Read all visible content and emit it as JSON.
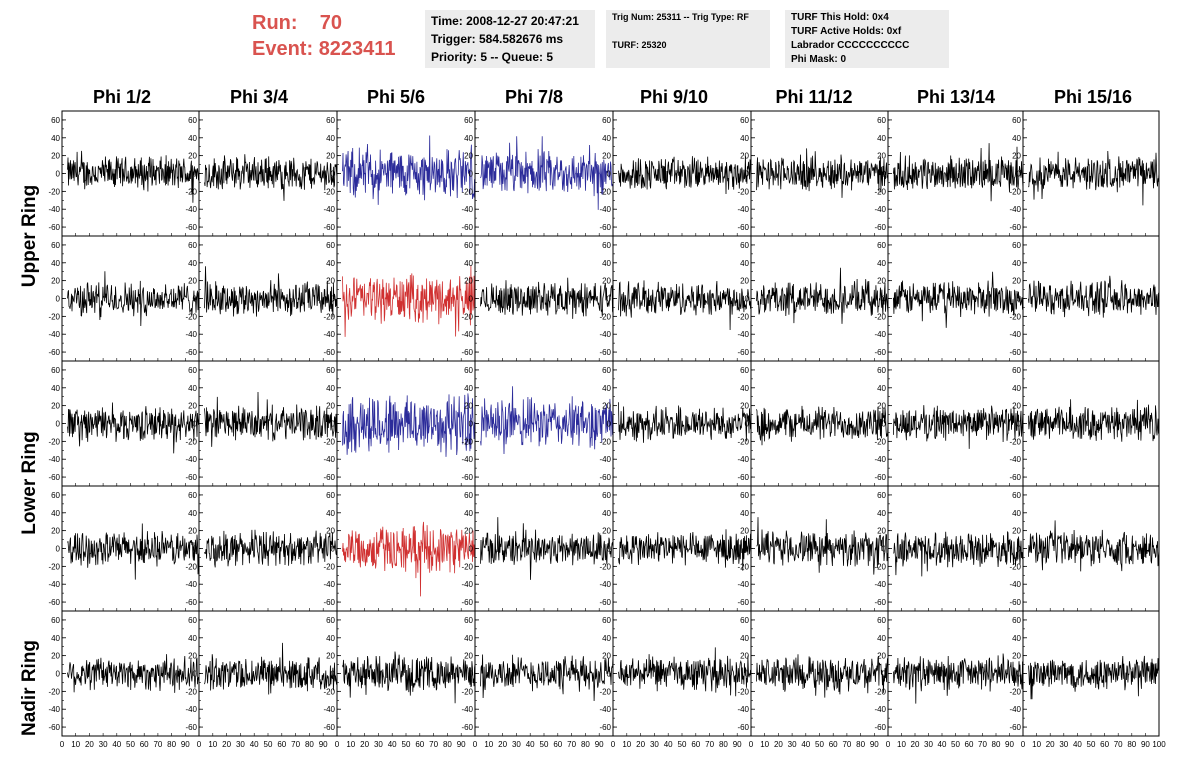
{
  "run": {
    "run_label": "Run:",
    "run_value": "70",
    "event_label": "Event:",
    "event_value": "8223411"
  },
  "time_panel": {
    "time": "Time: 2008-12-27 20:47:21",
    "trigger": "Trigger: 584.582676 ms",
    "priority": "Priority: 5 -- Queue: 5"
  },
  "trig_panel": {
    "trig_line": "Trig Num: 25311 -- Trig Type: RF",
    "turf_line": "TURF: 25320"
  },
  "turf_panel": {
    "this_hold": "TURF This Hold: 0x4",
    "active_holds": "TURF Active Holds: 0xf",
    "labrador": "Labrador CCCCCCCCCC",
    "phi_mask": "Phi Mask: 0"
  },
  "columns": [
    "Phi 1/2",
    "Phi 3/4",
    "Phi 5/6",
    "Phi 7/8",
    "Phi 9/10",
    "Phi 11/12",
    "Phi 13/14",
    "Phi 15/16"
  ],
  "row_labels": {
    "upper": "Upper Ring",
    "lower": "Lower Ring",
    "nadir": "Nadir Ring"
  },
  "colors": {
    "triggered_blue": "#2b2b9a",
    "triggered_red": "#d03030",
    "normal": "#000000",
    "panel_bg": "#ececec",
    "run_text": "#d9534f"
  },
  "chart_data": {
    "type": "line",
    "description_rows": [
      "Upper Ring (upper)",
      "Upper Ring (lower)",
      "Lower Ring (upper)",
      "Lower Ring (lower)",
      "Nadir Ring"
    ],
    "xlim": [
      0,
      100
    ],
    "ylim": [
      -70,
      70
    ],
    "x_ticks": [
      0,
      10,
      20,
      30,
      40,
      50,
      60,
      70,
      80,
      90,
      100
    ],
    "x_tick_labels": [
      "0",
      "10",
      "20",
      "30",
      "40",
      "50",
      "60",
      "70",
      "80",
      "90",
      "100"
    ],
    "y_ticks": [
      -60,
      -40,
      -20,
      0,
      20,
      40,
      60
    ],
    "y_tick_labels": [
      "-60",
      "-40",
      "-20",
      "0",
      "20",
      "40",
      "60"
    ],
    "grid": false,
    "highlighted_traces": [
      {
        "row": 0,
        "col": 2,
        "color": "blue",
        "amplitude": 32
      },
      {
        "row": 0,
        "col": 3,
        "color": "blue",
        "amplitude": 28
      },
      {
        "row": 1,
        "col": 2,
        "color": "red",
        "amplitude": 30
      },
      {
        "row": 2,
        "col": 2,
        "color": "blue",
        "amplitude": 40
      },
      {
        "row": 2,
        "col": 3,
        "color": "blue",
        "amplitude": 32
      },
      {
        "row": 3,
        "col": 2,
        "color": "red",
        "amplitude": 30
      }
    ],
    "typical_amplitude": 22
  }
}
